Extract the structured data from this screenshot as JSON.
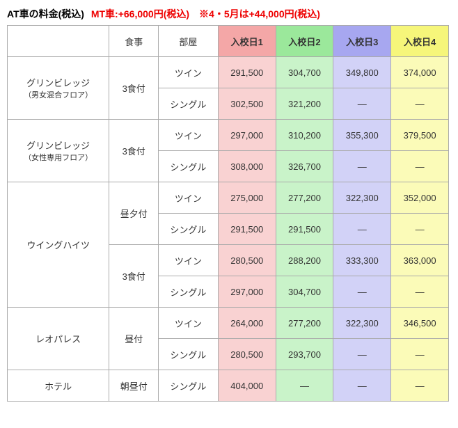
{
  "title": {
    "black": "AT車の料金(税込)",
    "red": "MT車:+66,000円(税込)　※4・5月は+44,000円(税込)"
  },
  "headers": {
    "meal": "食事",
    "room": "部屋",
    "day1": "入校日1",
    "day2": "入校日2",
    "day3": "入校日3",
    "day4": "入校日4"
  },
  "lodgings": {
    "green_mix": {
      "name": "グリンビレッジ",
      "sub": "（男女混合フロア）"
    },
    "green_women": {
      "name": "グリンビレッジ",
      "sub": "（女性専用フロア）"
    },
    "wing": {
      "name": "ウイングハイツ"
    },
    "leo": {
      "name": "レオパレス"
    },
    "hotel": {
      "name": "ホテル"
    }
  },
  "meals": {
    "m3": "3食付",
    "ld": "昼夕付",
    "l": "昼付",
    "bl": "朝昼付"
  },
  "rooms": {
    "twin": "ツイン",
    "single": "シングル"
  },
  "prices": {
    "green_mix_twin": {
      "d1": "291,500",
      "d2": "304,700",
      "d3": "349,800",
      "d4": "374,000"
    },
    "green_mix_single": {
      "d1": "302,500",
      "d2": "321,200",
      "d3": "—",
      "d4": "—"
    },
    "green_women_twin": {
      "d1": "297,000",
      "d2": "310,200",
      "d3": "355,300",
      "d4": "379,500"
    },
    "green_women_single": {
      "d1": "308,000",
      "d2": "326,700",
      "d3": "—",
      "d4": "—"
    },
    "wing_ld_twin": {
      "d1": "275,000",
      "d2": "277,200",
      "d3": "322,300",
      "d4": "352,000"
    },
    "wing_ld_single": {
      "d1": "291,500",
      "d2": "291,500",
      "d3": "—",
      "d4": "—"
    },
    "wing_m3_twin": {
      "d1": "280,500",
      "d2": "288,200",
      "d3": "333,300",
      "d4": "363,000"
    },
    "wing_m3_single": {
      "d1": "297,000",
      "d2": "304,700",
      "d3": "—",
      "d4": "—"
    },
    "leo_twin": {
      "d1": "264,000",
      "d2": "277,200",
      "d3": "322,300",
      "d4": "346,500"
    },
    "leo_single": {
      "d1": "280,500",
      "d2": "293,700",
      "d3": "—",
      "d4": "—"
    },
    "hotel_single": {
      "d1": "404,000",
      "d2": "—",
      "d3": "—",
      "d4": "—"
    }
  }
}
